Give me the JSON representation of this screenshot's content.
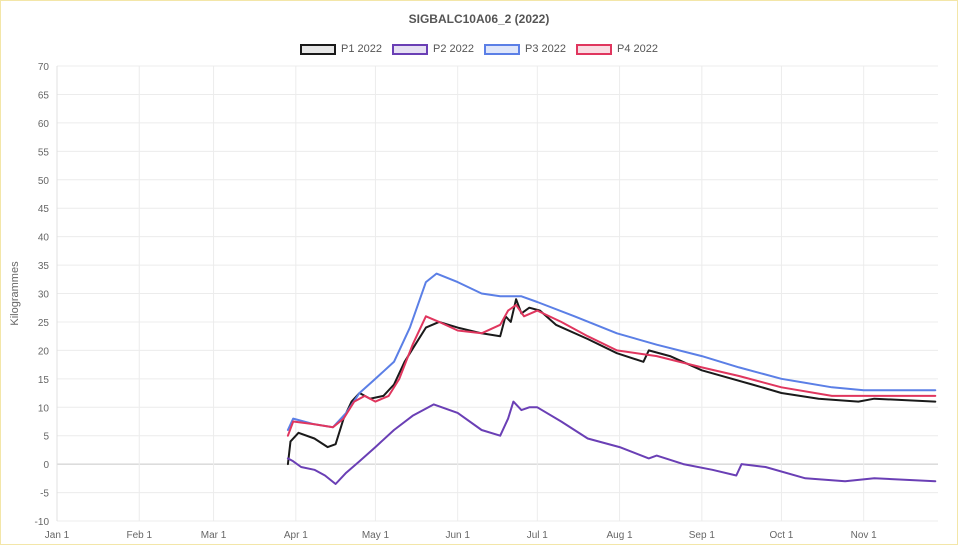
{
  "chart_data": {
    "type": "line",
    "title": "SIGBALC10A06_2 (2022)",
    "xlabel": "",
    "ylabel": "Kilogrammes",
    "ylim": [
      -10,
      70
    ],
    "xlim": [
      "2022-01-01",
      "2022-11-29"
    ],
    "grid": true,
    "legend_position": "top",
    "x_ticks": [
      {
        "label": "Jan 1",
        "date": "2022-01-01"
      },
      {
        "label": "Feb 1",
        "date": "2022-02-01"
      },
      {
        "label": "Mar 1",
        "date": "2022-03-01"
      },
      {
        "label": "Apr 1",
        "date": "2022-04-01"
      },
      {
        "label": "May 1",
        "date": "2022-05-01"
      },
      {
        "label": "Jun 1",
        "date": "2022-06-01"
      },
      {
        "label": "Jul 1",
        "date": "2022-07-01"
      },
      {
        "label": "Aug 1",
        "date": "2022-08-01"
      },
      {
        "label": "Sep 1",
        "date": "2022-09-01"
      },
      {
        "label": "Oct 1",
        "date": "2022-10-01"
      },
      {
        "label": "Nov 1",
        "date": "2022-11-01"
      }
    ],
    "y_ticks": [
      "-10",
      "-5",
      "0",
      "5",
      "10",
      "15",
      "20",
      "25",
      "30",
      "35",
      "40",
      "45",
      "50",
      "55",
      "60",
      "65",
      "70"
    ],
    "series": [
      {
        "name": "P1 2022",
        "color": "#1a1a1a",
        "fill": "#e6e6e6",
        "points": [
          [
            "2022-03-29",
            0
          ],
          [
            "2022-03-30",
            4
          ],
          [
            "2022-04-02",
            5.5
          ],
          [
            "2022-04-08",
            4.5
          ],
          [
            "2022-04-13",
            3
          ],
          [
            "2022-04-16",
            3.5
          ],
          [
            "2022-04-19",
            8
          ],
          [
            "2022-04-22",
            11
          ],
          [
            "2022-04-25",
            12.5
          ],
          [
            "2022-04-29",
            11.5
          ],
          [
            "2022-05-04",
            12
          ],
          [
            "2022-05-08",
            14
          ],
          [
            "2022-05-12",
            18
          ],
          [
            "2022-05-16",
            21
          ],
          [
            "2022-05-20",
            24
          ],
          [
            "2022-05-25",
            25
          ],
          [
            "2022-06-01",
            24
          ],
          [
            "2022-06-10",
            23
          ],
          [
            "2022-06-17",
            22.5
          ],
          [
            "2022-06-19",
            26
          ],
          [
            "2022-06-21",
            25
          ],
          [
            "2022-06-23",
            29
          ],
          [
            "2022-06-25",
            26.5
          ],
          [
            "2022-06-28",
            27.5
          ],
          [
            "2022-07-02",
            27
          ],
          [
            "2022-07-08",
            24.5
          ],
          [
            "2022-07-20",
            22
          ],
          [
            "2022-07-31",
            19.5
          ],
          [
            "2022-08-10",
            18
          ],
          [
            "2022-08-12",
            20
          ],
          [
            "2022-08-20",
            19
          ],
          [
            "2022-09-01",
            16.5
          ],
          [
            "2022-09-20",
            14
          ],
          [
            "2022-10-01",
            12.5
          ],
          [
            "2022-10-15",
            11.5
          ],
          [
            "2022-10-30",
            11
          ],
          [
            "2022-11-05",
            11.5
          ],
          [
            "2022-11-28",
            11
          ]
        ]
      },
      {
        "name": "P2 2022",
        "color": "#6a3fb5",
        "fill": "#e6e0f3",
        "points": [
          [
            "2022-03-29",
            1
          ],
          [
            "2022-03-31",
            0.5
          ],
          [
            "2022-04-03",
            -0.5
          ],
          [
            "2022-04-08",
            -1
          ],
          [
            "2022-04-12",
            -2
          ],
          [
            "2022-04-16",
            -3.5
          ],
          [
            "2022-04-20",
            -1.5
          ],
          [
            "2022-04-25",
            0.5
          ],
          [
            "2022-05-01",
            3
          ],
          [
            "2022-05-08",
            6
          ],
          [
            "2022-05-15",
            8.5
          ],
          [
            "2022-05-23",
            10.5
          ],
          [
            "2022-06-01",
            9
          ],
          [
            "2022-06-10",
            6
          ],
          [
            "2022-06-17",
            5
          ],
          [
            "2022-06-20",
            8
          ],
          [
            "2022-06-22",
            11
          ],
          [
            "2022-06-25",
            9.5
          ],
          [
            "2022-06-28",
            10
          ],
          [
            "2022-07-01",
            10
          ],
          [
            "2022-07-10",
            7.5
          ],
          [
            "2022-07-20",
            4.5
          ],
          [
            "2022-08-01",
            3
          ],
          [
            "2022-08-12",
            1
          ],
          [
            "2022-08-15",
            1.5
          ],
          [
            "2022-08-25",
            0
          ],
          [
            "2022-09-05",
            -1
          ],
          [
            "2022-09-14",
            -2
          ],
          [
            "2022-09-16",
            0
          ],
          [
            "2022-09-25",
            -0.5
          ],
          [
            "2022-10-10",
            -2.5
          ],
          [
            "2022-10-25",
            -3
          ],
          [
            "2022-11-05",
            -2.5
          ],
          [
            "2022-11-28",
            -3
          ]
        ]
      },
      {
        "name": "P3 2022",
        "color": "#5b7fe6",
        "fill": "#dfe6fa",
        "points": [
          [
            "2022-03-29",
            6
          ],
          [
            "2022-03-31",
            8
          ],
          [
            "2022-04-08",
            7
          ],
          [
            "2022-04-15",
            6.5
          ],
          [
            "2022-04-20",
            9
          ],
          [
            "2022-04-25",
            12.5
          ],
          [
            "2022-05-01",
            15
          ],
          [
            "2022-05-08",
            18
          ],
          [
            "2022-05-14",
            24
          ],
          [
            "2022-05-20",
            32
          ],
          [
            "2022-05-24",
            33.5
          ],
          [
            "2022-06-01",
            32
          ],
          [
            "2022-06-10",
            30
          ],
          [
            "2022-06-17",
            29.5
          ],
          [
            "2022-06-25",
            29.5
          ],
          [
            "2022-07-01",
            28.5
          ],
          [
            "2022-07-15",
            26
          ],
          [
            "2022-07-31",
            23
          ],
          [
            "2022-08-15",
            21
          ],
          [
            "2022-09-01",
            19
          ],
          [
            "2022-09-15",
            17
          ],
          [
            "2022-10-01",
            15
          ],
          [
            "2022-10-20",
            13.5
          ],
          [
            "2022-11-01",
            13
          ],
          [
            "2022-11-28",
            13
          ]
        ]
      },
      {
        "name": "P4 2022",
        "color": "#e0365e",
        "fill": "#f9dde3",
        "points": [
          [
            "2022-03-29",
            5
          ],
          [
            "2022-03-31",
            7.5
          ],
          [
            "2022-04-08",
            7
          ],
          [
            "2022-04-15",
            6.5
          ],
          [
            "2022-04-19",
            8
          ],
          [
            "2022-04-23",
            11
          ],
          [
            "2022-04-27",
            12
          ],
          [
            "2022-05-01",
            11
          ],
          [
            "2022-05-06",
            12
          ],
          [
            "2022-05-10",
            15
          ],
          [
            "2022-05-15",
            21
          ],
          [
            "2022-05-20",
            26
          ],
          [
            "2022-05-25",
            25
          ],
          [
            "2022-06-01",
            23.5
          ],
          [
            "2022-06-10",
            23
          ],
          [
            "2022-06-17",
            24.5
          ],
          [
            "2022-06-20",
            27
          ],
          [
            "2022-06-23",
            28
          ],
          [
            "2022-06-26",
            26
          ],
          [
            "2022-07-01",
            27
          ],
          [
            "2022-07-10",
            25
          ],
          [
            "2022-07-20",
            22.5
          ],
          [
            "2022-07-31",
            20
          ],
          [
            "2022-08-15",
            19
          ],
          [
            "2022-09-01",
            17
          ],
          [
            "2022-09-15",
            15.5
          ],
          [
            "2022-10-01",
            13.5
          ],
          [
            "2022-10-20",
            12
          ],
          [
            "2022-11-01",
            12
          ],
          [
            "2022-11-28",
            12
          ]
        ]
      }
    ]
  }
}
